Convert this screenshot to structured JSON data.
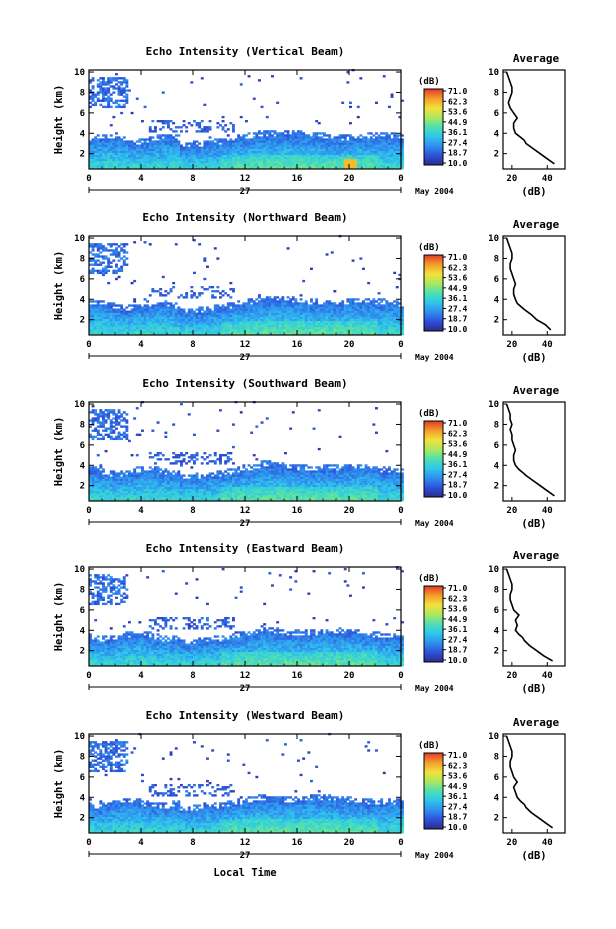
{
  "figure": {
    "xlabel": "Local Time",
    "date_suffix": "May 2004",
    "day_label": "27",
    "ylabel": "Height (km)",
    "colorbar_unit": "(dB)",
    "colorbar_ticks": [
      "71.0",
      "62.3",
      "53.6",
      "44.9",
      "36.1",
      "27.4",
      "18.7",
      "10.0"
    ],
    "profile_title": "Average",
    "profile_xlabel": "(dB)"
  },
  "chart_data": [
    {
      "type": "heatmap",
      "title": "Echo Intensity (Vertical Beam)",
      "ylabel": "Height (km)",
      "xticks": [
        "0",
        "4",
        "8",
        "12",
        "16",
        "20",
        "0"
      ],
      "yticks": [
        "2",
        "4",
        "6",
        "8",
        "10"
      ],
      "xlim": [
        0,
        24
      ],
      "ylim": [
        0.5,
        10.2
      ],
      "colorscale_db": [
        10.0,
        71.0
      ],
      "colorbar_ticks": [
        71.0,
        62.3,
        53.6,
        44.9,
        36.1,
        27.4,
        18.7,
        10.0
      ],
      "profile": {
        "title": "Average",
        "xlabel": "(dB)",
        "xlim": [
          15,
          50
        ],
        "xticks": [
          20,
          40
        ],
        "heights": [
          1.0,
          1.5,
          2.0,
          2.5,
          3.0,
          3.3,
          3.6,
          4.0,
          4.5,
          5.0,
          5.5,
          6.0,
          6.5,
          7.0,
          7.5,
          8.0,
          8.5,
          9.0,
          9.5,
          10.0
        ],
        "db": [
          44,
          40,
          36,
          32,
          28,
          27,
          25,
          22,
          21,
          21,
          23,
          21,
          19,
          18,
          19,
          20,
          20,
          19,
          18,
          17
        ]
      }
    },
    {
      "type": "heatmap",
      "title": "Echo Intensity (Northward Beam)",
      "ylabel": "Height (km)",
      "xticks": [
        "0",
        "4",
        "8",
        "12",
        "16",
        "20",
        "0"
      ],
      "yticks": [
        "2",
        "4",
        "6",
        "8",
        "10"
      ],
      "xlim": [
        0,
        24
      ],
      "ylim": [
        0.5,
        10.2
      ],
      "colorscale_db": [
        10.0,
        71.0
      ],
      "colorbar_ticks": [
        71.0,
        62.3,
        53.6,
        44.9,
        36.1,
        27.4,
        18.7,
        10.0
      ],
      "profile": {
        "title": "Average",
        "xlabel": "(dB)",
        "xlim": [
          15,
          50
        ],
        "xticks": [
          20,
          40
        ],
        "heights": [
          1.0,
          1.5,
          2.0,
          2.5,
          3.0,
          3.3,
          3.6,
          4.0,
          4.5,
          5.0,
          5.5,
          6.0,
          6.5,
          7.0,
          7.5,
          8.0,
          8.5,
          9.0,
          9.5,
          10.0
        ],
        "db": [
          42,
          39,
          34,
          31,
          27,
          25,
          23,
          22,
          21,
          21,
          22,
          21,
          20,
          19,
          19,
          20,
          20,
          19,
          18,
          17
        ]
      }
    },
    {
      "type": "heatmap",
      "title": "Echo Intensity (Southward Beam)",
      "ylabel": "Height (km)",
      "xticks": [
        "0",
        "4",
        "8",
        "12",
        "16",
        "20",
        "0"
      ],
      "yticks": [
        "2",
        "4",
        "6",
        "8",
        "10"
      ],
      "xlim": [
        0,
        24
      ],
      "ylim": [
        0.5,
        10.2
      ],
      "colorscale_db": [
        10.0,
        71.0
      ],
      "colorbar_ticks": [
        71.0,
        62.3,
        53.6,
        44.9,
        36.1,
        27.4,
        18.7,
        10.0
      ],
      "profile": {
        "title": "Average",
        "xlabel": "(dB)",
        "xlim": [
          15,
          50
        ],
        "xticks": [
          20,
          40
        ],
        "heights": [
          1.0,
          1.5,
          2.0,
          2.5,
          3.0,
          3.3,
          3.6,
          4.0,
          4.5,
          5.0,
          5.5,
          6.0,
          6.5,
          7.0,
          7.5,
          8.0,
          8.5,
          9.0,
          9.5,
          10.0
        ],
        "db": [
          44,
          40,
          36,
          32,
          28,
          26,
          24,
          22,
          21,
          21,
          22,
          21,
          20,
          20,
          19,
          20,
          19,
          19,
          18,
          17
        ]
      }
    },
    {
      "type": "heatmap",
      "title": "Echo Intensity (Eastward Beam)",
      "ylabel": "Height (km)",
      "xticks": [
        "0",
        "4",
        "8",
        "12",
        "16",
        "20",
        "0"
      ],
      "yticks": [
        "2",
        "4",
        "6",
        "8",
        "10"
      ],
      "xlim": [
        0,
        24
      ],
      "ylim": [
        0.5,
        10.2
      ],
      "colorscale_db": [
        10.0,
        71.0
      ],
      "colorbar_ticks": [
        71.0,
        62.3,
        53.6,
        44.9,
        36.1,
        27.4,
        18.7,
        10.0
      ],
      "profile": {
        "title": "Average",
        "xlabel": "(dB)",
        "xlim": [
          15,
          50
        ],
        "xticks": [
          20,
          40
        ],
        "heights": [
          1.0,
          1.5,
          2.0,
          2.5,
          3.0,
          3.3,
          3.6,
          4.0,
          4.5,
          5.0,
          5.5,
          6.0,
          6.5,
          7.0,
          7.5,
          8.0,
          8.5,
          9.0,
          9.5,
          10.0
        ],
        "db": [
          43,
          38,
          34,
          30,
          27,
          26,
          24,
          22,
          23,
          22,
          24,
          21,
          20,
          19,
          19,
          20,
          20,
          19,
          18,
          17
        ]
      }
    },
    {
      "type": "heatmap",
      "title": "Echo Intensity (Westward Beam)",
      "ylabel": "Height (km)",
      "xticks": [
        "0",
        "4",
        "8",
        "12",
        "16",
        "20",
        "0"
      ],
      "yticks": [
        "2",
        "4",
        "6",
        "8",
        "10"
      ],
      "xlim": [
        0,
        24
      ],
      "ylim": [
        0.5,
        10.2
      ],
      "colorscale_db": [
        10.0,
        71.0
      ],
      "colorbar_ticks": [
        71.0,
        62.3,
        53.6,
        44.9,
        36.1,
        27.4,
        18.7,
        10.0
      ],
      "profile": {
        "title": "Average",
        "xlabel": "(dB)",
        "xlim": [
          15,
          50
        ],
        "xticks": [
          20,
          40
        ],
        "heights": [
          1.0,
          1.5,
          2.0,
          2.5,
          3.0,
          3.3,
          3.6,
          4.0,
          4.5,
          5.0,
          5.5,
          6.0,
          6.5,
          7.0,
          7.5,
          8.0,
          8.5,
          9.0,
          9.5,
          10.0
        ],
        "db": [
          43,
          39,
          35,
          31,
          28,
          27,
          25,
          23,
          22,
          21,
          23,
          21,
          20,
          19,
          19,
          20,
          20,
          19,
          18,
          17
        ]
      }
    }
  ]
}
